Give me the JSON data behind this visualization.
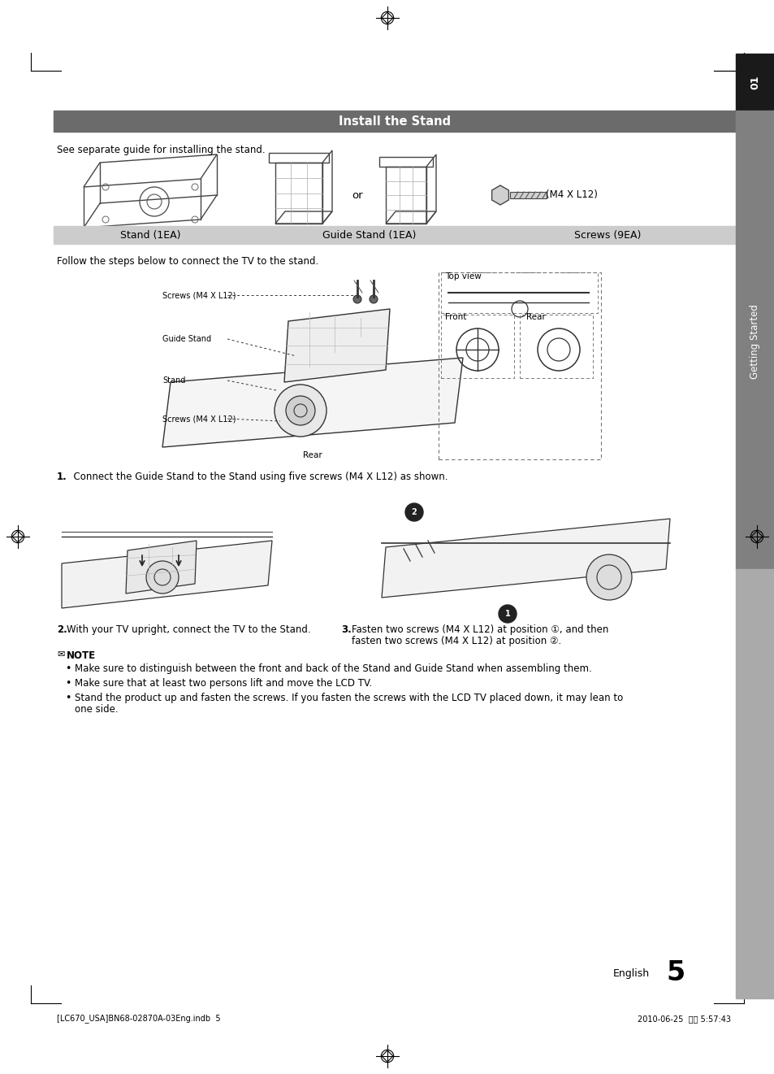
{
  "page_bg": "#ffffff",
  "title_bar_color": "#6b6b6b",
  "title_text": "Install the Stand",
  "title_text_color": "#ffffff",
  "subtitle_label_bg": "#cccccc",
  "sidebar_dark_color": "#1a1a1a",
  "sidebar_mid_color": "#808080",
  "sidebar_light_color": "#999999",
  "section_header_text1": "See separate guide for installing the stand.",
  "label_stand": "Stand (1EA)",
  "label_guide_stand": "Guide Stand (1EA)",
  "label_screws_label": "Screws (9EA)",
  "label_screw_size": "(M4 X L12)",
  "follow_text": "Follow the steps below to connect the TV to the stand.",
  "step1_text": "1.   Connect the Guide Stand to the Stand using five screws (M4 X L12) as shown.",
  "step2_num": "2.",
  "step2_body": "With your TV upright, connect the TV to the Stand.",
  "step3_num": "3.",
  "step3_line1": "Fasten two screws (M4 X L12) at position ①, and then",
  "step3_line2": "fasten two screws (M4 X L12) at position ②.",
  "note_icon": "✉",
  "note_word": "NOTE",
  "note_bullet1": "Make sure to distinguish between the front and back of the Stand and Guide Stand when assembling them.",
  "note_bullet2": "Make sure that at least two persons lift and move the LCD TV.",
  "note_bullet3a": "Stand the product up and fasten the screws. If you fasten the screws with the LCD TV placed down, it may lean to",
  "note_bullet3b": "one side.",
  "english_text": "English",
  "page_number": "5",
  "footer_left": "[LC670_USA]BN68-02870A-03Eng.indb  5",
  "footer_right": "2010-06-25  오후 5:57:43",
  "diagram_label_screws_top": "Screws (M4 X L12)",
  "diagram_label_guide": "Guide Stand",
  "diagram_label_stand": "Stand",
  "diagram_label_screws_bot": "Screws (M4 X L12)",
  "diagram_label_rear": "Rear",
  "diagram_label_topview": "Top view",
  "diagram_label_front": "Front",
  "diagram_label_rear2": "Rear",
  "body_fs": 8.5,
  "small_fs": 7.5,
  "label_fs": 9.0
}
